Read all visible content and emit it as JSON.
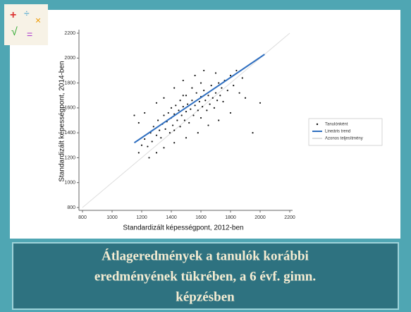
{
  "chart_data": {
    "type": "scatter",
    "xlabel": "Standardizált képességpont, 2012-ben",
    "ylabel": "Standardizált képességpont, 2014-ben",
    "xlim": [
      800,
      2200
    ],
    "xticks": [
      800,
      1000,
      1200,
      1400,
      1600,
      1800,
      2000,
      2200
    ],
    "ylim": [
      800,
      2200
    ],
    "yticks": [
      800,
      1000,
      1200,
      1400,
      1600,
      1800,
      2000,
      2200
    ],
    "series": [
      {
        "name": "Tanulónként",
        "type": "scatter",
        "color": "#111111",
        "x": [
          1180,
          1200,
          1220,
          1240,
          1260,
          1270,
          1280,
          1300,
          1310,
          1320,
          1330,
          1340,
          1350,
          1360,
          1370,
          1380,
          1390,
          1400,
          1400,
          1410,
          1420,
          1430,
          1440,
          1450,
          1460,
          1460,
          1470,
          1480,
          1490,
          1500,
          1500,
          1510,
          1520,
          1530,
          1540,
          1550,
          1560,
          1570,
          1580,
          1590,
          1600,
          1600,
          1610,
          1620,
          1630,
          1640,
          1650,
          1660,
          1670,
          1680,
          1690,
          1700,
          1710,
          1720,
          1730,
          1740,
          1750,
          1760,
          1780,
          1800,
          1820,
          1840,
          1860,
          1880,
          1900,
          1950,
          2000,
          1150,
          1180,
          1220,
          1300,
          1350,
          1420,
          1480,
          1560,
          1620,
          1250,
          1300,
          1350,
          1420,
          1500,
          1580,
          1650,
          1720,
          1800,
          1420,
          1480,
          1540,
          1600,
          1700
        ],
        "y": [
          1240,
          1300,
          1350,
          1290,
          1400,
          1330,
          1450,
          1380,
          1500,
          1420,
          1360,
          1470,
          1540,
          1430,
          1490,
          1560,
          1400,
          1520,
          1600,
          1460,
          1550,
          1620,
          1500,
          1580,
          1450,
          1660,
          1540,
          1610,
          1500,
          1570,
          1700,
          1630,
          1480,
          1590,
          1660,
          1540,
          1620,
          1720,
          1580,
          1650,
          1520,
          1690,
          1610,
          1740,
          1660,
          1580,
          1700,
          1630,
          1780,
          1680,
          1600,
          1720,
          1660,
          1800,
          1700,
          1760,
          1650,
          1820,
          1740,
          1860,
          1780,
          1900,
          1720,
          1840,
          1680,
          1400,
          1640,
          1540,
          1480,
          1560,
          1640,
          1680,
          1760,
          1820,
          1860,
          1900,
          1200,
          1240,
          1280,
          1320,
          1360,
          1400,
          1460,
          1500,
          1560,
          1420,
          1700,
          1760,
          1800,
          1880
        ]
      },
      {
        "name": "Lineáris trend",
        "type": "line",
        "color": "#2f6fc0",
        "x": [
          1150,
          2030
        ],
        "y": [
          1320,
          2030
        ]
      },
      {
        "name": "Azonos teljesítmény",
        "type": "line",
        "color": "#dddddd",
        "x": [
          800,
          2200
        ],
        "y": [
          800,
          2200
        ]
      }
    ],
    "caption": [
      "Átlageredmények a tanulók korábbi",
      "eredményének tükrében, a 6 évf. gimn.",
      "képzésben"
    ]
  }
}
